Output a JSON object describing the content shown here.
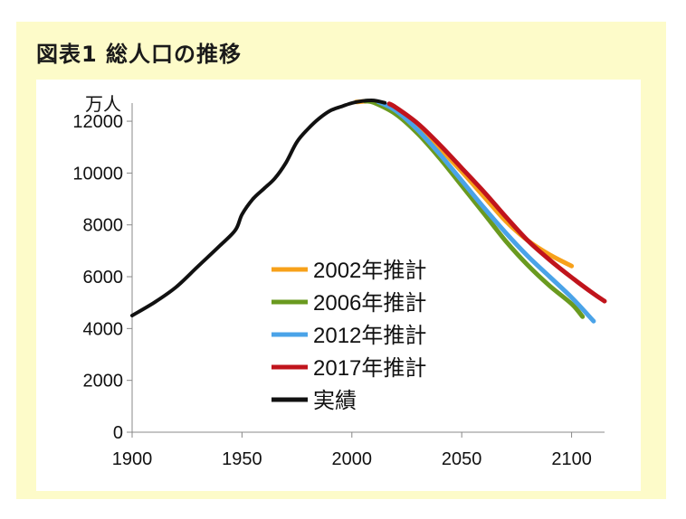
{
  "title": "図表1  総人口の推移",
  "chart_data": {
    "type": "line",
    "title": "図表1  総人口の推移",
    "ylabel": "万人",
    "xlabel": "",
    "xlim": [
      1900,
      2115
    ],
    "ylim": [
      0,
      12700
    ],
    "x_ticks": [
      "1900",
      "1950",
      "2000",
      "2050",
      "2100"
    ],
    "y_ticks": [
      "0",
      "2000",
      "4000",
      "6000",
      "8000",
      "10000",
      "12000"
    ],
    "grid": false,
    "legend_position": "center",
    "series": [
      {
        "name": "2002年推計",
        "color": "#f7a11a",
        "x": [
          2002,
          2010,
          2020,
          2030,
          2040,
          2050,
          2060,
          2070,
          2080,
          2090,
          2100
        ],
        "y": [
          12744,
          12747,
          12411,
          11758,
          10950,
          10059,
          9100,
          8150,
          7400,
          6850,
          6414
        ]
      },
      {
        "name": "2006年推計",
        "color": "#6a9a1f",
        "x": [
          2006,
          2010,
          2020,
          2030,
          2040,
          2050,
          2060,
          2070,
          2080,
          2090,
          2100,
          2105
        ],
        "y": [
          12774,
          12718,
          12274,
          11522,
          10570,
          9515,
          8450,
          7380,
          6450,
          5650,
          4950,
          4459
        ]
      },
      {
        "name": "2012年推計",
        "color": "#4aa3e8",
        "x": [
          2012,
          2020,
          2030,
          2040,
          2050,
          2060,
          2070,
          2080,
          2090,
          2100,
          2110
        ],
        "y": [
          12752,
          12410,
          11662,
          10728,
          9708,
          8674,
          7700,
          6800,
          6000,
          5200,
          4286
        ]
      },
      {
        "name": "2017年推計",
        "color": "#c0141c",
        "x": [
          2017,
          2020,
          2030,
          2040,
          2050,
          2060,
          2070,
          2080,
          2090,
          2100,
          2110,
          2115
        ],
        "y": [
          12671,
          12532,
          11913,
          11092,
          10192,
          9284,
          8323,
          7400,
          6650,
          5972,
          5343,
          5056
        ]
      },
      {
        "name": "実績",
        "color": "#111111",
        "x": [
          1900,
          1910,
          1920,
          1930,
          1940,
          1947,
          1950,
          1955,
          1960,
          1965,
          1970,
          1975,
          1980,
          1985,
          1990,
          1995,
          2000,
          2005,
          2010,
          2015
        ],
        "y": [
          4500,
          5000,
          5600,
          6400,
          7200,
          7800,
          8400,
          9000,
          9400,
          9800,
          10400,
          11200,
          11700,
          12100,
          12400,
          12560,
          12700,
          12780,
          12800,
          12710
        ]
      }
    ]
  }
}
